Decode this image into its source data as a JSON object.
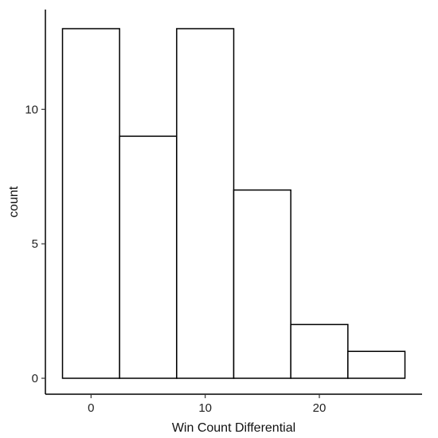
{
  "chart_data": {
    "type": "bar",
    "subtype": "histogram",
    "title": "",
    "xlabel": "Win Count Differential",
    "ylabel": "count",
    "bins": [
      {
        "from": -2.5,
        "to": 2.5,
        "count": 13
      },
      {
        "from": 2.5,
        "to": 7.5,
        "count": 9
      },
      {
        "from": 7.5,
        "to": 12.5,
        "count": 13
      },
      {
        "from": 12.5,
        "to": 17.5,
        "count": 7
      },
      {
        "from": 17.5,
        "to": 22.5,
        "count": 2
      },
      {
        "from": 22.5,
        "to": 27.5,
        "count": 1
      }
    ],
    "xlim": [
      -4,
      29
    ],
    "ylim": [
      0,
      13.5
    ],
    "x_ticks": [
      0,
      10,
      20
    ],
    "x_tick_labels": [
      "0",
      "10",
      "20"
    ],
    "y_ticks": [
      0,
      5,
      10
    ],
    "y_tick_labels": [
      "0",
      "5",
      "10"
    ],
    "grid": false,
    "legend": "none",
    "colors": {
      "bar_fill": "#ffffff",
      "bar_stroke": "#000000"
    }
  }
}
